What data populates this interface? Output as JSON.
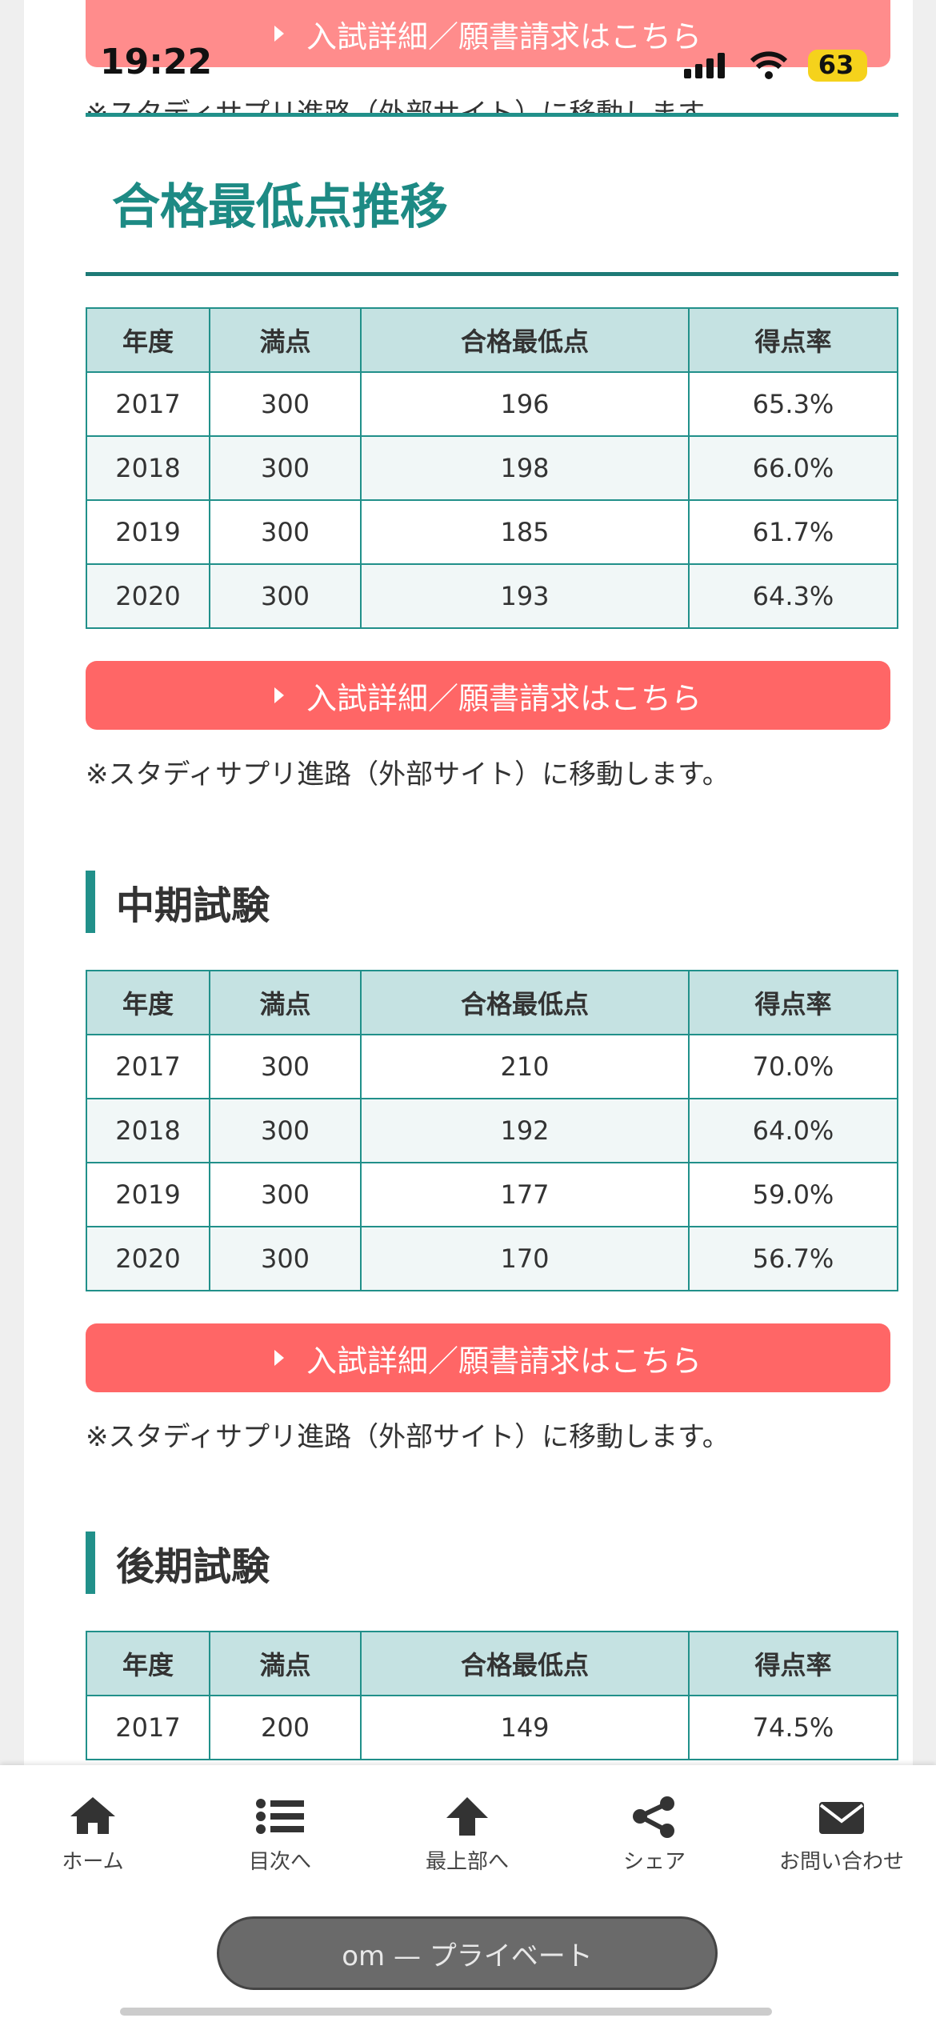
{
  "status": {
    "time": "19:22",
    "battery": "63"
  },
  "top_button": "入試詳細／願書請求はこちら",
  "top_note": "※スタディサプリ進路（外部サイト）に移動します。",
  "section_title": "合格最低点推移",
  "tables": [
    {
      "headers": [
        "年度",
        "満点",
        "合格最低点",
        "得点率"
      ],
      "rows": [
        [
          "2017",
          "300",
          "196",
          "65.3%"
        ],
        [
          "2018",
          "300",
          "198",
          "66.0%"
        ],
        [
          "2019",
          "300",
          "185",
          "61.7%"
        ],
        [
          "2020",
          "300",
          "193",
          "64.3%"
        ]
      ],
      "button": "入試詳細／願書請求はこちら",
      "note": "※スタディサプリ進路（外部サイト）に移動します。"
    },
    {
      "heading": "中期試験",
      "headers": [
        "年度",
        "満点",
        "合格最低点",
        "得点率"
      ],
      "rows": [
        [
          "2017",
          "300",
          "210",
          "70.0%"
        ],
        [
          "2018",
          "300",
          "192",
          "64.0%"
        ],
        [
          "2019",
          "300",
          "177",
          "59.0%"
        ],
        [
          "2020",
          "300",
          "170",
          "56.7%"
        ]
      ],
      "button": "入試詳細／願書請求はこちら",
      "note": "※スタディサプリ進路（外部サイト）に移動します。"
    },
    {
      "heading": "後期試験",
      "headers": [
        "年度",
        "満点",
        "合格最低点",
        "得点率"
      ],
      "rows": [
        [
          "2017",
          "200",
          "149",
          "74.5%"
        ]
      ]
    }
  ],
  "nav": [
    "ホーム",
    "目次へ",
    "最上部へ",
    "シェア",
    "お問い合わせ"
  ],
  "browser_bar": "om — プライベート"
}
